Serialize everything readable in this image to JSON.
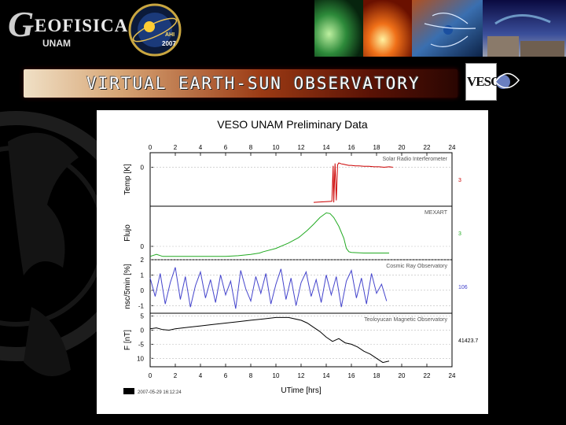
{
  "header": {
    "logo_text": "EOFISICA",
    "logo_sub": "UNAM",
    "badge": {
      "year": "2007",
      "center": "AHI"
    },
    "banner_title": "VIRTUAL EARTH-SUN OBSERVATORY",
    "veso_logo": "VESO"
  },
  "colors": {
    "background": "#000000",
    "solar_radio": "#cc0000",
    "mexart": "#22aa22",
    "cosmic_ray": "#4444cc",
    "magnetic": "#000000"
  },
  "chart_data": {
    "type": "line",
    "title": "VESO UNAM Preliminary Data",
    "xlabel": "UTime [hrs]",
    "xlim": [
      0,
      24
    ],
    "xticks": [
      "0",
      "2",
      "4",
      "6",
      "8",
      "10",
      "12",
      "14",
      "16",
      "18",
      "20",
      "22",
      "24"
    ],
    "footer_date": "2007-05-29 16:12:24",
    "panels": [
      {
        "name": "Solar Radio Interferometer",
        "ylabel": "Temp [K]",
        "yticks": [
          "0"
        ],
        "ylim": [
          -8,
          3
        ],
        "right_label": "3",
        "color": "#cc0000",
        "x": [
          13.0,
          14.45,
          14.55,
          14.6,
          14.7,
          14.8,
          14.9,
          15.0,
          15.2,
          15.4,
          15.6,
          15.8,
          16.0,
          16.3,
          16.6,
          17.0,
          17.4,
          17.8,
          18.2,
          18.6,
          19.0,
          19.3
        ],
        "y": [
          -7.2,
          -7.0,
          0.3,
          -7.2,
          0.8,
          -6.8,
          0.5,
          0.9,
          0.7,
          0.6,
          0.5,
          0.4,
          0.4,
          0.3,
          0.3,
          0.2,
          0.2,
          0.1,
          0.1,
          0.0,
          0.1,
          0.0
        ]
      },
      {
        "name": "MEXART",
        "ylabel": "Flujo",
        "yticks": [
          "0"
        ],
        "ylim": [
          -2,
          6
        ],
        "right_label": "3",
        "color": "#22aa22",
        "x": [
          0,
          0.5,
          1,
          2,
          3,
          4,
          5,
          6,
          7,
          8,
          8.7,
          9,
          10,
          11,
          11.8,
          12,
          12.5,
          13,
          13.5,
          14,
          14.3,
          14.6,
          15,
          15.4,
          15.6,
          15.8,
          16,
          17,
          18,
          19
        ],
        "y": [
          -1.5,
          -1.2,
          -1.5,
          -1.5,
          -1.5,
          -1.5,
          -1.5,
          -1.5,
          -1.4,
          -1.2,
          -1.0,
          -0.8,
          -0.3,
          0.5,
          1.3,
          1.6,
          2.4,
          3.3,
          4.3,
          5.0,
          4.9,
          4.3,
          3.0,
          1.2,
          -0.3,
          -0.8,
          -0.9,
          -1.0,
          -1.0,
          -1.0
        ]
      },
      {
        "name": "Cosmic Ray Observatory",
        "ylabel": "nsc/5min [%]",
        "yticks": [
          "2",
          "1",
          "0",
          "-1"
        ],
        "ylim": [
          -1.5,
          2
        ],
        "right_label": "106",
        "color": "#4444cc",
        "x": [
          0,
          0.4,
          0.8,
          1.2,
          1.6,
          2.0,
          2.4,
          2.8,
          3.2,
          3.6,
          4.0,
          4.4,
          4.8,
          5.2,
          5.6,
          6.0,
          6.4,
          6.8,
          7.2,
          7.6,
          8.0,
          8.4,
          8.8,
          9.2,
          9.6,
          10.0,
          10.4,
          10.8,
          11.2,
          11.6,
          12.0,
          12.4,
          12.8,
          13.2,
          13.6,
          14.0,
          14.4,
          14.8,
          15.2,
          15.6,
          16.0,
          16.4,
          16.8,
          17.2,
          17.6,
          18.0,
          18.4,
          18.8
        ],
        "y": [
          0.8,
          -0.4,
          1.1,
          -0.9,
          0.5,
          1.5,
          -0.6,
          0.9,
          -1.1,
          0.3,
          1.2,
          -0.5,
          0.7,
          -0.8,
          1.0,
          -0.3,
          0.6,
          -1.2,
          1.3,
          0.1,
          -0.7,
          0.9,
          -0.2,
          1.1,
          -0.9,
          0.4,
          1.4,
          -0.6,
          0.8,
          -1.0,
          0.5,
          1.2,
          -0.4,
          0.7,
          -0.8,
          1.0,
          -0.3,
          0.9,
          -1.1,
          0.6,
          1.3,
          -0.5,
          0.8,
          -0.9,
          1.1,
          -0.2,
          0.4,
          -0.7
        ]
      },
      {
        "name": "Teoloyucan Magnetic Observatory",
        "ylabel": "F [nT]",
        "yticks": [
          "5",
          "0",
          "-5",
          "10"
        ],
        "ylim": [
          -13,
          6
        ],
        "right_label": "41423.7",
        "color": "#000000",
        "x": [
          0,
          0.5,
          1,
          1.5,
          2,
          3,
          4,
          5,
          6,
          7,
          8,
          9,
          10,
          11,
          12,
          12.5,
          13,
          13.5,
          14,
          14.5,
          15,
          15.5,
          16,
          16.5,
          17,
          17.5,
          18,
          18.5,
          19
        ],
        "y": [
          0.5,
          0.8,
          0.2,
          0.0,
          0.5,
          1.0,
          1.5,
          2.0,
          2.5,
          3.0,
          3.5,
          4.0,
          4.5,
          4.5,
          3.5,
          2.5,
          1.0,
          -0.5,
          -2.5,
          -4.0,
          -3.0,
          -4.5,
          -5.0,
          -6.0,
          -7.5,
          -8.5,
          -10.0,
          -11.5,
          -11.0
        ]
      }
    ]
  }
}
